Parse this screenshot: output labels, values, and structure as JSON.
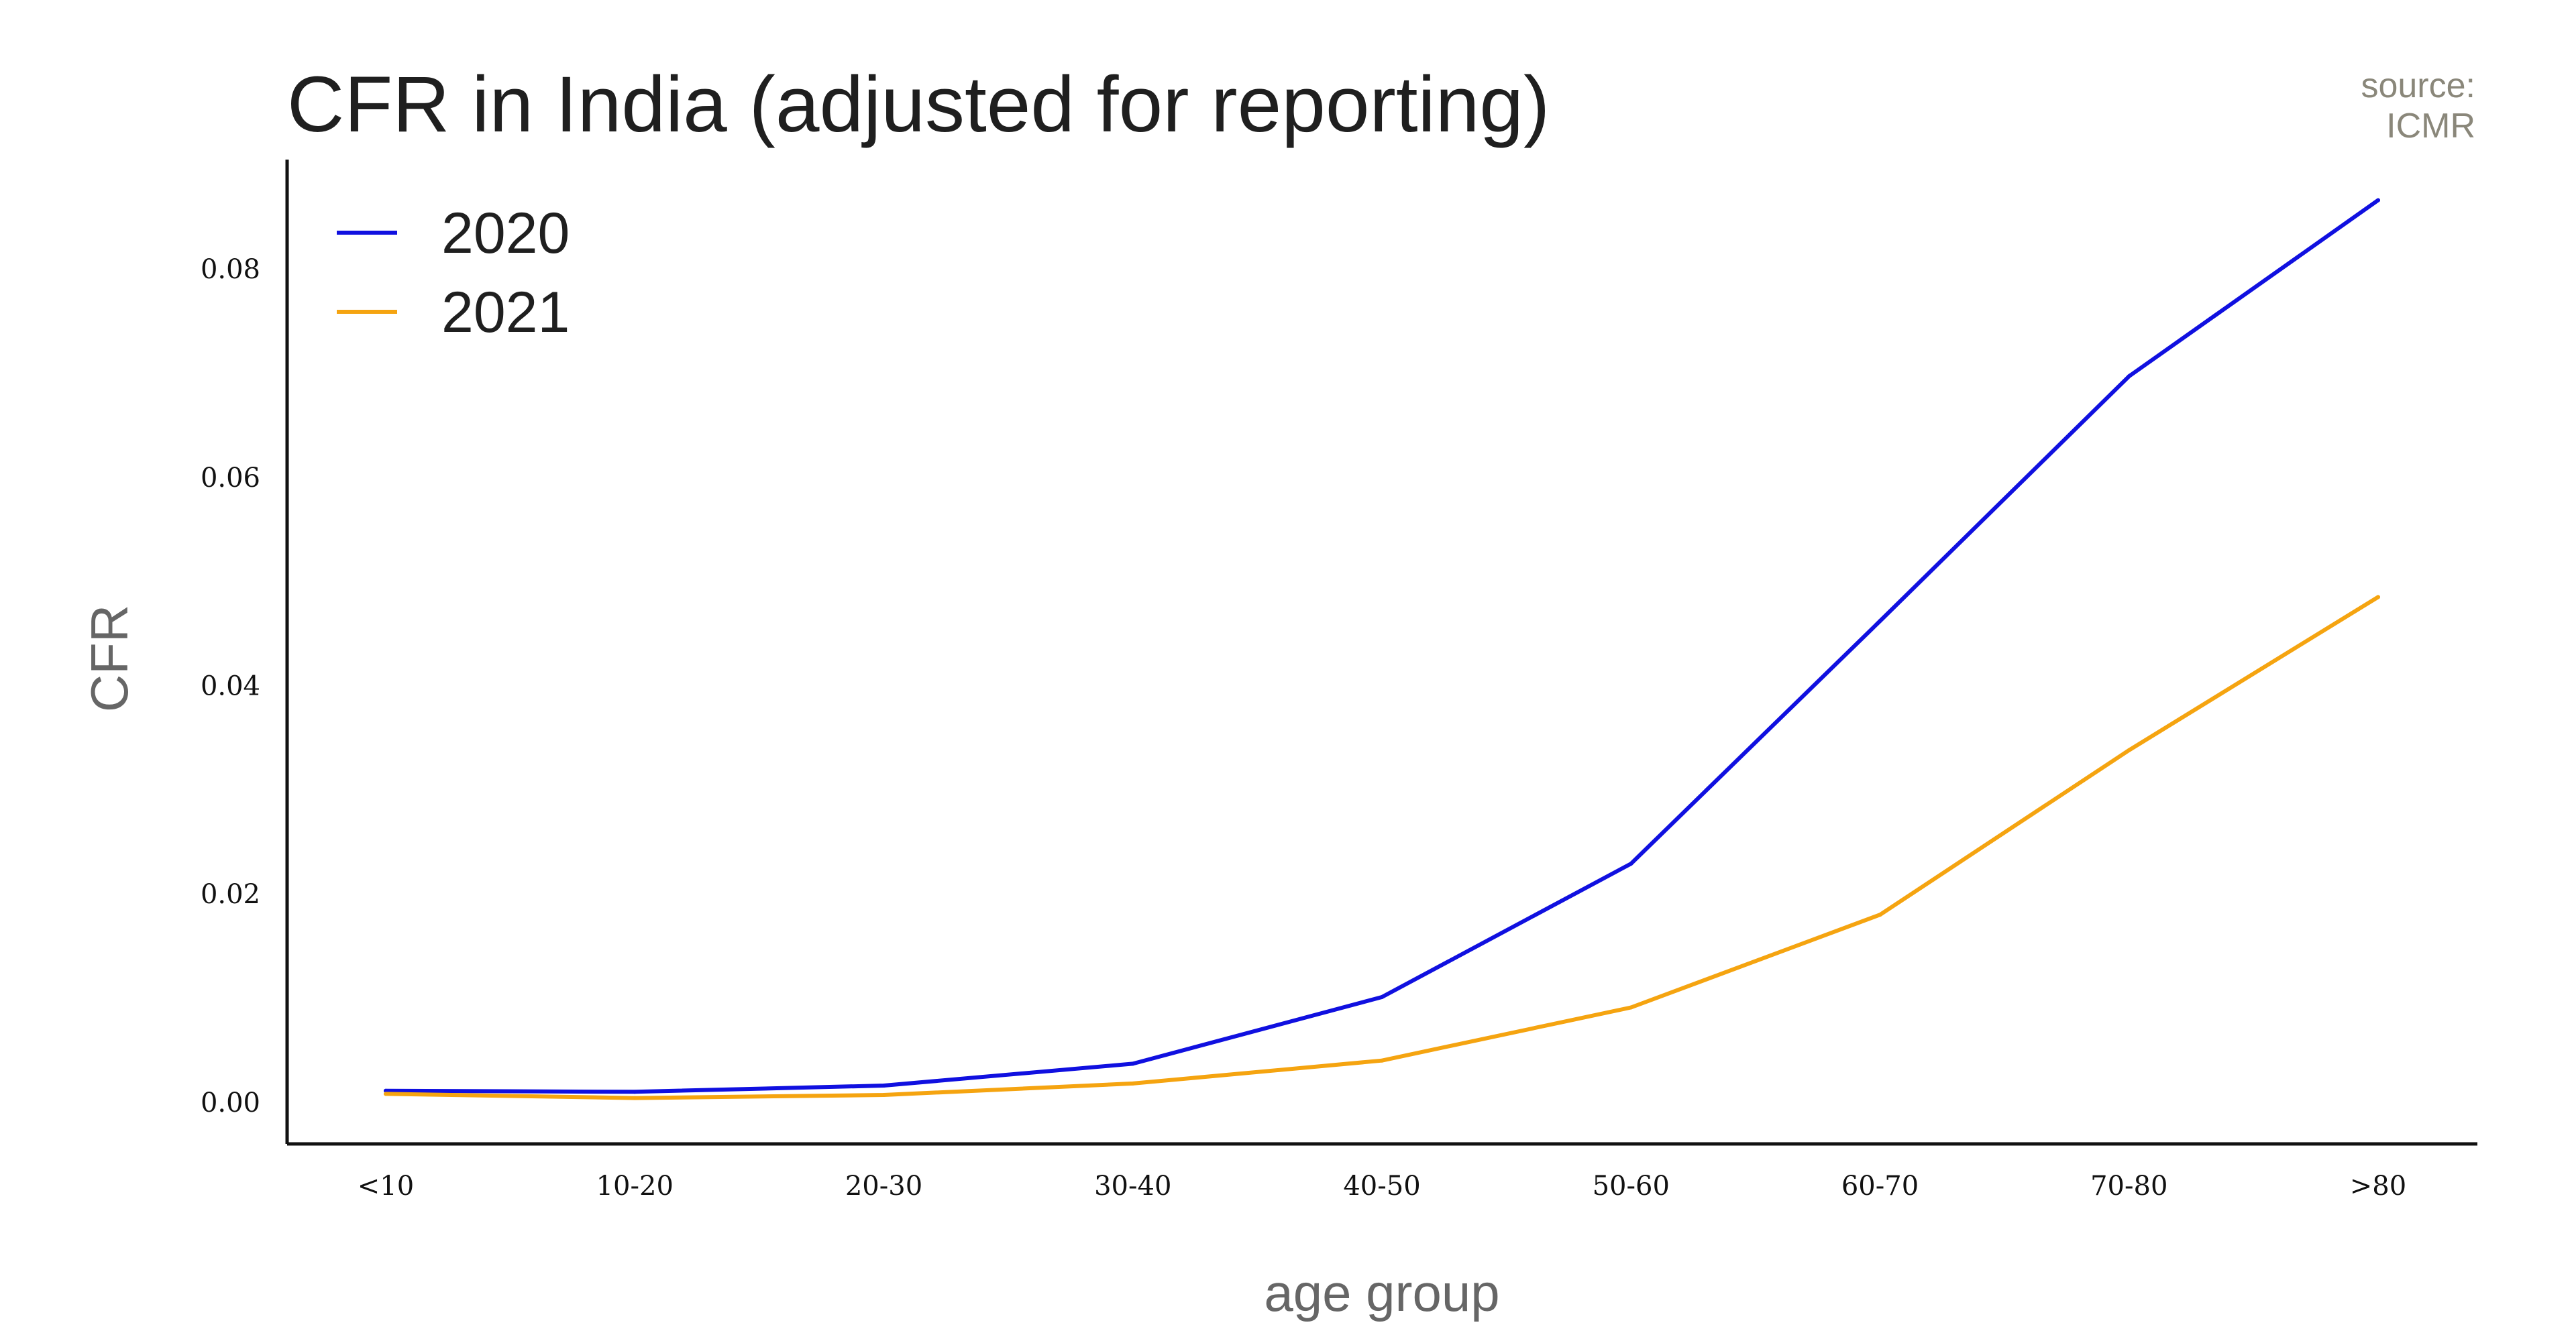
{
  "chart_data": {
    "type": "line",
    "title": "CFR in India (adjusted for reporting)",
    "source_label": "source:",
    "source_name": "ICMR",
    "xlabel": "age group",
    "ylabel": "CFR",
    "categories": [
      "<10",
      "10-20",
      "20-30",
      "30-40",
      "40-50",
      "50-60",
      "60-70",
      "70-80",
      ">80"
    ],
    "ylim": [
      -0.004,
      0.0905
    ],
    "yticks": [
      0.0,
      0.02,
      0.04,
      0.06,
      0.08
    ],
    "ytick_labels": [
      "0.00",
      "0.02",
      "0.04",
      "0.06",
      "0.08"
    ],
    "grid": false,
    "legend_position": "top-left",
    "series": [
      {
        "name": "2020",
        "color": "#1010e0",
        "values": [
          0.0011,
          0.001,
          0.0016,
          0.0037,
          0.0101,
          0.0229,
          0.0462,
          0.0697,
          0.0866
        ]
      },
      {
        "name": "2021",
        "color": "#f5a410",
        "values": [
          0.0008,
          0.0004,
          0.0007,
          0.0018,
          0.004,
          0.0091,
          0.018,
          0.0338,
          0.0485
        ]
      }
    ]
  }
}
